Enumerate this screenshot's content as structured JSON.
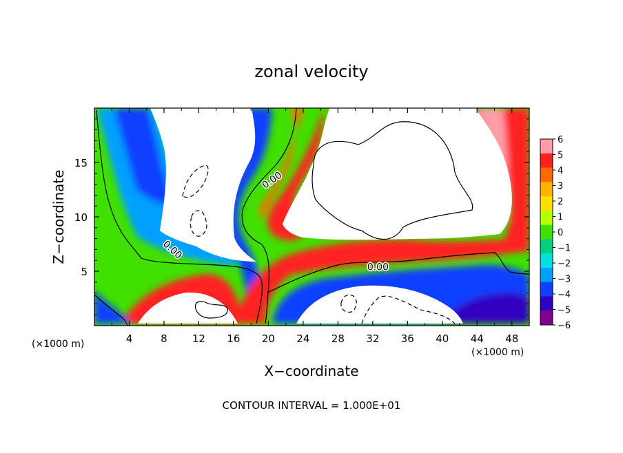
{
  "chart_data": {
    "type": "heatmap",
    "title": "zonal velocity",
    "xlabel": "X−coordinate",
    "ylabel": "Z−coordinate",
    "x_unit_left": "(×1000 m)",
    "x_unit_right": "(×1000 m)",
    "footer": "CONTOUR INTERVAL = 1.000E+01",
    "xlim": [
      0,
      50
    ],
    "ylim": [
      0,
      20
    ],
    "x_ticks": [
      4,
      8,
      12,
      16,
      20,
      24,
      28,
      32,
      36,
      40,
      44,
      48
    ],
    "x_tick_labels": [
      "4",
      "8",
      "12",
      "16",
      "20",
      "24",
      "28",
      "32",
      "36",
      "40",
      "44",
      "48"
    ],
    "y_ticks": [
      5,
      10,
      15
    ],
    "y_tick_labels": [
      "5",
      "10",
      "15"
    ],
    "colorbar": {
      "range": [
        -6,
        6
      ],
      "ticks": [
        6,
        5,
        4,
        3,
        2,
        1,
        0,
        -1,
        -2,
        -3,
        -4,
        -5,
        -6
      ],
      "tick_labels": [
        "6",
        "5",
        "4",
        "3",
        "2",
        "1",
        "0",
        "−1",
        "−2",
        "−3",
        "−4",
        "−5",
        "−6"
      ],
      "colors": [
        "#ff9da8",
        "#ff2020",
        "#ff6a00",
        "#ffb000",
        "#ffe000",
        "#b8ff00",
        "#40e000",
        "#00d080",
        "#00e0e0",
        "#00a0ff",
        "#1040ff",
        "#3000c0",
        "#800090"
      ]
    },
    "contour_labels": [
      {
        "text": "0.00",
        "x": 9.0,
        "z": 7.0,
        "angle": 42
      },
      {
        "text": "0.00",
        "x": 20.4,
        "z": 13.4,
        "angle": -35
      },
      {
        "text": "0.00",
        "x": 32.6,
        "z": 5.4,
        "angle": 0
      }
    ]
  }
}
